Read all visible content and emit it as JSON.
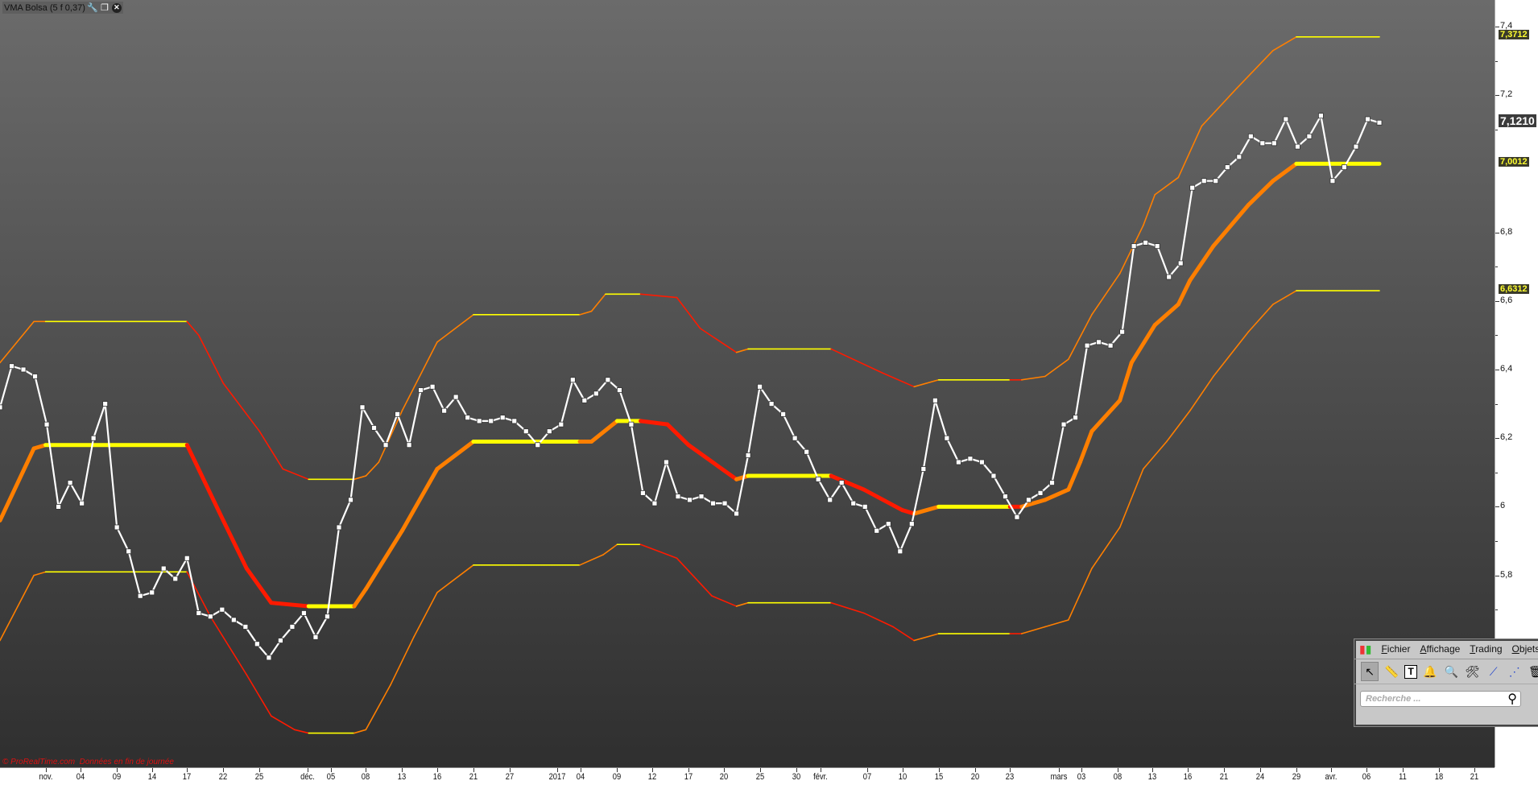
{
  "window": {
    "title": "VMA Bolsa (5 f 0,37)"
  },
  "footer": {
    "copyright": "© ProRealTime.com",
    "note": "Données en fin de journée"
  },
  "toolbox": {
    "menu": [
      "Fichier",
      "Affichage",
      "Trading",
      "Objets"
    ],
    "tools": [
      "pointer-icon",
      "ruler-icon",
      "text-icon",
      "alert-bell-icon",
      "zoom-icon",
      "settings-tools-icon",
      "trendline-icon",
      "points-line-icon",
      "trash-icon"
    ],
    "search_placeholder": "Recherche ..."
  },
  "chart_data": {
    "type": "line",
    "colors": {
      "price": "#ffffff",
      "yellow": "#ffff00",
      "red": "#ff1a00",
      "orange": "#ff7f00"
    },
    "ylim": [
      5.3,
      7.46
    ],
    "xlim": [
      -1,
      127
    ],
    "y_ticks": [
      "7,4",
      "7,2",
      "6,8",
      "6,6",
      "6,4",
      "6,2",
      "6",
      "5,8"
    ],
    "y_tick_values": [
      7.4,
      7.2,
      6.8,
      6.6,
      6.4,
      6.2,
      6.0,
      5.8
    ],
    "last_values": {
      "upper_band": "7,3712",
      "price": "7,1210",
      "vma": "7,0012",
      "lower_band": "6,6312"
    },
    "x_ticks": [
      {
        "label": "nov.",
        "i": 2.9
      },
      {
        "label": "04",
        "i": 5.9
      },
      {
        "label": "09",
        "i": 9.0
      },
      {
        "label": "14",
        "i": 12.0
      },
      {
        "label": "17",
        "i": 15.0
      },
      {
        "label": "22",
        "i": 18.1
      },
      {
        "label": "25",
        "i": 21.2
      },
      {
        "label": "déc.",
        "i": 25.3
      },
      {
        "label": "05",
        "i": 27.3
      },
      {
        "label": "08",
        "i": 30.3
      },
      {
        "label": "13",
        "i": 33.4
      },
      {
        "label": "16",
        "i": 36.4
      },
      {
        "label": "21",
        "i": 39.5
      },
      {
        "label": "27",
        "i": 42.6
      },
      {
        "label": "2017",
        "i": 46.7
      },
      {
        "label": "04",
        "i": 48.7
      },
      {
        "label": "09",
        "i": 51.8
      },
      {
        "label": "12",
        "i": 54.8
      },
      {
        "label": "17",
        "i": 57.9
      },
      {
        "label": "20",
        "i": 60.9
      },
      {
        "label": "25",
        "i": 64.0
      },
      {
        "label": "30",
        "i": 67.1
      },
      {
        "label": "févr.",
        "i": 69.2
      },
      {
        "label": "07",
        "i": 73.2
      },
      {
        "label": "10",
        "i": 76.2
      },
      {
        "label": "15",
        "i": 79.3
      },
      {
        "label": "20",
        "i": 82.4
      },
      {
        "label": "23",
        "i": 85.4
      },
      {
        "label": "mars",
        "i": 89.6
      },
      {
        "label": "03",
        "i": 91.5
      },
      {
        "label": "08",
        "i": 94.6
      },
      {
        "label": "13",
        "i": 97.6
      },
      {
        "label": "16",
        "i": 100.6
      },
      {
        "label": "21",
        "i": 103.7
      },
      {
        "label": "24",
        "i": 106.8
      },
      {
        "label": "29",
        "i": 109.9
      },
      {
        "label": "avr.",
        "i": 112.9
      },
      {
        "label": "06",
        "i": 115.9
      },
      {
        "label": "11",
        "i": 119.0
      },
      {
        "label": "18",
        "i": 122.1
      },
      {
        "label": "21",
        "i": 125.1
      }
    ],
    "price_start_index": -1,
    "price": [
      6.29,
      6.41,
      6.4,
      6.38,
      6.24,
      6.0,
      6.07,
      6.01,
      6.2,
      6.3,
      5.94,
      5.87,
      5.74,
      5.75,
      5.82,
      5.79,
      5.85,
      5.69,
      5.68,
      5.7,
      5.67,
      5.65,
      5.6,
      5.56,
      5.61,
      5.65,
      5.69,
      5.62,
      5.68,
      5.94,
      6.02,
      6.29,
      6.23,
      6.18,
      6.27,
      6.18,
      6.34,
      6.35,
      6.28,
      6.32,
      6.26,
      6.25,
      6.25,
      6.26,
      6.25,
      6.22,
      6.18,
      6.22,
      6.24,
      6.37,
      6.31,
      6.33,
      6.37,
      6.34,
      6.24,
      6.04,
      6.01,
      6.13,
      6.03,
      6.02,
      6.03,
      6.01,
      6.01,
      5.98,
      6.15,
      6.35,
      6.3,
      6.27,
      6.2,
      6.16,
      6.08,
      6.02,
      6.07,
      6.01,
      6.0,
      5.93,
      5.95,
      5.87,
      5.95,
      6.11,
      6.31,
      6.2,
      6.13,
      6.14,
      6.13,
      6.09,
      6.03,
      5.97,
      6.02,
      6.04,
      6.07,
      6.24,
      6.26,
      6.47,
      6.48,
      6.47,
      6.51,
      6.76,
      6.77,
      6.76,
      6.67,
      6.71,
      6.93,
      6.95,
      6.95,
      6.99,
      7.02,
      7.08,
      7.06,
      7.06,
      7.13,
      7.05,
      7.08,
      7.14,
      6.95,
      6.99,
      7.05,
      7.13,
      7.12
    ],
    "vma": [
      [
        -1,
        5.96,
        ""
      ],
      [
        1.9,
        6.17,
        "orange"
      ],
      [
        2.9,
        6.18,
        "orange"
      ],
      [
        15.0,
        6.18,
        "yellow"
      ],
      [
        18.1,
        5.96,
        "red"
      ],
      [
        20.1,
        5.82,
        "red"
      ],
      [
        22.2,
        5.72,
        "red"
      ],
      [
        25.4,
        5.71,
        "red"
      ],
      [
        29.3,
        5.71,
        "yellow"
      ],
      [
        30.3,
        5.76,
        "orange"
      ],
      [
        33.4,
        5.93,
        "orange"
      ],
      [
        36.4,
        6.11,
        "orange"
      ],
      [
        39.5,
        6.19,
        "orange"
      ],
      [
        48.6,
        6.19,
        "yellow"
      ],
      [
        49.6,
        6.19,
        "orange"
      ],
      [
        51.8,
        6.25,
        "orange"
      ],
      [
        53.8,
        6.25,
        "yellow"
      ],
      [
        56.1,
        6.24,
        "red"
      ],
      [
        57.9,
        6.18,
        "red"
      ],
      [
        62.0,
        6.08,
        "red"
      ],
      [
        63.0,
        6.09,
        "orange"
      ],
      [
        70.1,
        6.09,
        "yellow"
      ],
      [
        72.9,
        6.05,
        "red"
      ],
      [
        76.2,
        5.99,
        "red"
      ],
      [
        77.2,
        5.98,
        "red"
      ],
      [
        79.3,
        6.0,
        "orange"
      ],
      [
        85.4,
        6.0,
        "yellow"
      ],
      [
        86.4,
        6.0,
        "red"
      ],
      [
        88.4,
        6.02,
        "orange"
      ],
      [
        90.4,
        6.05,
        "orange"
      ],
      [
        91.4,
        6.13,
        "orange"
      ],
      [
        92.4,
        6.22,
        "orange"
      ],
      [
        94.8,
        6.31,
        "orange"
      ],
      [
        95.8,
        6.42,
        "orange"
      ],
      [
        97.8,
        6.53,
        "orange"
      ],
      [
        99.8,
        6.59,
        "orange"
      ],
      [
        100.8,
        6.66,
        "orange"
      ],
      [
        102.8,
        6.76,
        "orange"
      ],
      [
        105.8,
        6.88,
        "orange"
      ],
      [
        107.9,
        6.95,
        "orange"
      ],
      [
        109.9,
        7.0,
        "orange"
      ],
      [
        117,
        7.0,
        "yellow"
      ]
    ],
    "upper_band": [
      [
        -1,
        6.42,
        ""
      ],
      [
        1.9,
        6.54,
        "orange"
      ],
      [
        2.9,
        6.54,
        "orange"
      ],
      [
        15.0,
        6.54,
        "yellow"
      ],
      [
        16.0,
        6.5,
        "red"
      ],
      [
        18.1,
        6.36,
        "red"
      ],
      [
        21.2,
        6.22,
        "red"
      ],
      [
        23.2,
        6.11,
        "red"
      ],
      [
        25.4,
        6.08,
        "red"
      ],
      [
        29.3,
        6.08,
        "yellow"
      ],
      [
        30.3,
        6.09,
        "orange"
      ],
      [
        31.4,
        6.13,
        "orange"
      ],
      [
        33.4,
        6.28,
        "orange"
      ],
      [
        36.4,
        6.48,
        "orange"
      ],
      [
        39.5,
        6.56,
        "orange"
      ],
      [
        48.6,
        6.56,
        "yellow"
      ],
      [
        49.6,
        6.57,
        "orange"
      ],
      [
        50.8,
        6.62,
        "orange"
      ],
      [
        53.8,
        6.62,
        "yellow"
      ],
      [
        56.9,
        6.61,
        "red"
      ],
      [
        58.9,
        6.52,
        "red"
      ],
      [
        62.0,
        6.45,
        "red"
      ],
      [
        63.0,
        6.46,
        "orange"
      ],
      [
        70.1,
        6.46,
        "yellow"
      ],
      [
        74.5,
        6.39,
        "red"
      ],
      [
        77.2,
        6.35,
        "red"
      ],
      [
        79.3,
        6.37,
        "orange"
      ],
      [
        85.4,
        6.37,
        "yellow"
      ],
      [
        86.4,
        6.37,
        "red"
      ],
      [
        88.4,
        6.38,
        "orange"
      ],
      [
        90.4,
        6.43,
        "orange"
      ],
      [
        92.4,
        6.56,
        "orange"
      ],
      [
        94.8,
        6.68,
        "orange"
      ],
      [
        96.8,
        6.82,
        "orange"
      ],
      [
        97.8,
        6.91,
        "orange"
      ],
      [
        99.8,
        6.96,
        "orange"
      ],
      [
        101.8,
        7.11,
        "orange"
      ],
      [
        104.8,
        7.22,
        "orange"
      ],
      [
        107.9,
        7.33,
        "orange"
      ],
      [
        109.9,
        7.37,
        "orange"
      ],
      [
        117,
        7.37,
        "yellow"
      ]
    ],
    "lower_band": [
      [
        -1,
        5.61,
        ""
      ],
      [
        1.9,
        5.8,
        "orange"
      ],
      [
        2.9,
        5.81,
        "orange"
      ],
      [
        15.0,
        5.81,
        "yellow"
      ],
      [
        17.0,
        5.68,
        "red"
      ],
      [
        20.1,
        5.51,
        "red"
      ],
      [
        22.2,
        5.39,
        "red"
      ],
      [
        24.2,
        5.35,
        "red"
      ],
      [
        25.4,
        5.34,
        "red"
      ],
      [
        29.3,
        5.34,
        "yellow"
      ],
      [
        30.3,
        5.35,
        "orange"
      ],
      [
        32.4,
        5.48,
        "orange"
      ],
      [
        34.4,
        5.62,
        "orange"
      ],
      [
        36.4,
        5.75,
        "orange"
      ],
      [
        39.5,
        5.83,
        "orange"
      ],
      [
        48.6,
        5.83,
        "yellow"
      ],
      [
        50.6,
        5.86,
        "orange"
      ],
      [
        51.8,
        5.89,
        "orange"
      ],
      [
        53.8,
        5.89,
        "yellow"
      ],
      [
        56.9,
        5.85,
        "red"
      ],
      [
        59.9,
        5.74,
        "red"
      ],
      [
        62.0,
        5.71,
        "red"
      ],
      [
        63.0,
        5.72,
        "orange"
      ],
      [
        70.1,
        5.72,
        "yellow"
      ],
      [
        72.9,
        5.69,
        "red"
      ],
      [
        75.4,
        5.65,
        "red"
      ],
      [
        77.2,
        5.61,
        "red"
      ],
      [
        79.3,
        5.63,
        "orange"
      ],
      [
        85.4,
        5.63,
        "yellow"
      ],
      [
        86.4,
        5.63,
        "red"
      ],
      [
        88.4,
        5.65,
        "orange"
      ],
      [
        90.4,
        5.67,
        "orange"
      ],
      [
        92.4,
        5.82,
        "orange"
      ],
      [
        94.8,
        5.94,
        "orange"
      ],
      [
        96.8,
        6.11,
        "orange"
      ],
      [
        98.8,
        6.19,
        "orange"
      ],
      [
        100.8,
        6.28,
        "orange"
      ],
      [
        102.8,
        6.38,
        "orange"
      ],
      [
        105.8,
        6.51,
        "orange"
      ],
      [
        107.9,
        6.59,
        "orange"
      ],
      [
        109.9,
        6.63,
        "orange"
      ],
      [
        117,
        6.63,
        "yellow"
      ]
    ]
  }
}
